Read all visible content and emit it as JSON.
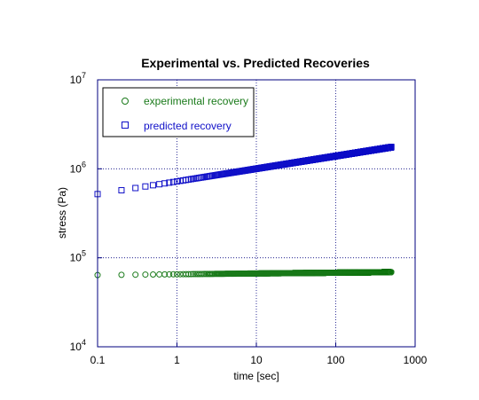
{
  "chart_data": {
    "type": "scatter",
    "title": "Experimental vs. Predicted Recoveries",
    "xlabel": "time [sec]",
    "ylabel": "stress (Pa)",
    "xscale": "log",
    "yscale": "log",
    "xlim": [
      0.1,
      1000
    ],
    "ylim": [
      10000,
      10000000
    ],
    "grid": true,
    "legend_position": "top-left",
    "x_ticks": [
      {
        "value": 0.1,
        "label": "0.1"
      },
      {
        "value": 1,
        "label": "1"
      },
      {
        "value": 10,
        "label": "10"
      },
      {
        "value": 100,
        "label": "100"
      },
      {
        "value": 1000,
        "label": "1000"
      }
    ],
    "y_ticks": [
      {
        "value": 10000,
        "base": "10",
        "exp": "4"
      },
      {
        "value": 100000,
        "base": "10",
        "exp": "5"
      },
      {
        "value": 1000000,
        "base": "10",
        "exp": "6"
      },
      {
        "value": 10000000,
        "base": "10",
        "exp": "7"
      }
    ],
    "series": [
      {
        "name": "experimental recovery",
        "marker": "circle",
        "color": "#1a7a1a",
        "x_start": 0.1,
        "x_step": 0.1,
        "x_end": 500,
        "y_at_x_start": 64000,
        "y_at_x_end": 69000
      },
      {
        "name": "predicted recovery",
        "marker": "square",
        "color": "#1010c8",
        "x_start": 0.1,
        "x_step": 0.1,
        "x_end": 500,
        "y_at_x_start": 520000,
        "y_at_x_end": 1750000
      }
    ]
  }
}
